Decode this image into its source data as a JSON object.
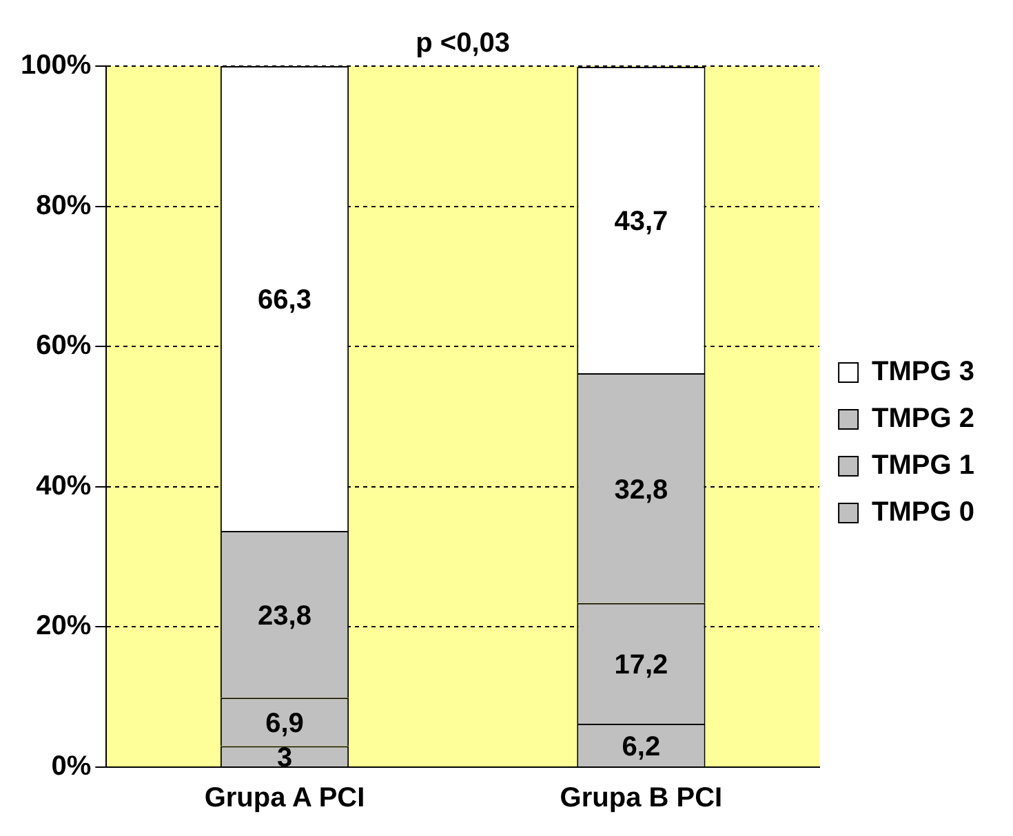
{
  "chart_data": {
    "type": "bar",
    "stacked": true,
    "categories": [
      "Grupa A PCI",
      "Grupa B PCI"
    ],
    "series": [
      {
        "name": "TMPG 0",
        "color": "#c0c0c0",
        "values": [
          3,
          6.2
        ],
        "value_labels": [
          "3",
          "6,2"
        ]
      },
      {
        "name": "TMPG 1",
        "color": "#c0c0c0",
        "values": [
          6.9,
          17.2
        ],
        "value_labels": [
          "6,9",
          "17,2"
        ]
      },
      {
        "name": "TMPG 2",
        "color": "#c0c0c0",
        "values": [
          23.8,
          32.8
        ],
        "value_labels": [
          "23,8",
          "32,8"
        ]
      },
      {
        "name": "TMPG 3",
        "color": "#ffffff",
        "values": [
          66.3,
          43.7
        ],
        "value_labels": [
          "66,3",
          "43,7"
        ]
      }
    ],
    "ylim": [
      0,
      100
    ],
    "yticks": [
      {
        "value": 0,
        "label": "0%"
      },
      {
        "value": 20,
        "label": "20%"
      },
      {
        "value": 40,
        "label": "40%"
      },
      {
        "value": 60,
        "label": "60%"
      },
      {
        "value": 80,
        "label": "80%"
      },
      {
        "value": 100,
        "label": "100%"
      }
    ],
    "grid": "y",
    "legend": "right",
    "annotations": [
      "p <0,03"
    ]
  }
}
